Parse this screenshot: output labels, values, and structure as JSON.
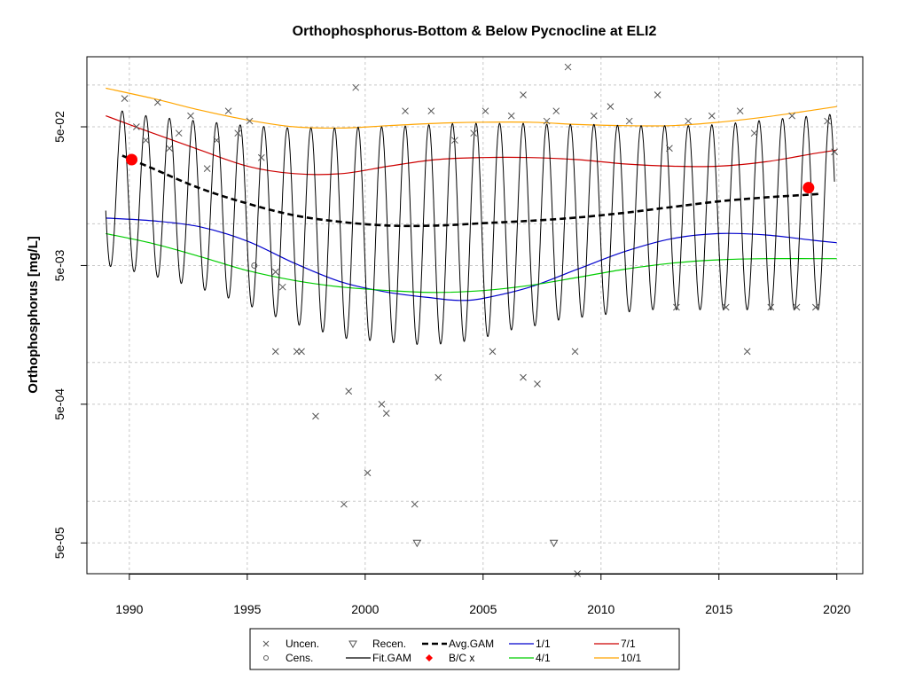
{
  "chart_data": {
    "type": "line",
    "title": "Orthophosphorus-Bottom & Below Pycnocline at ELI2",
    "xlabel": "",
    "ylabel": "Orthophosphorus [mg/L]",
    "y_scale": "log",
    "xlim": [
      1988.2,
      2021.1
    ],
    "ylim": [
      3e-05,
      0.16
    ],
    "x_ticks": [
      1990,
      1995,
      2000,
      2005,
      2010,
      2015,
      2020
    ],
    "y_ticks": [
      5e-05,
      0.0005,
      0.005,
      0.05
    ],
    "y_tick_labels": [
      "5e-05",
      "5e-04",
      "5e-03",
      "5e-02"
    ],
    "grid": true,
    "legend_position": "bottom",
    "colors": {
      "fit_gam": "#000000",
      "avg_gam": "#000000",
      "bc": "#ff0000",
      "s1_1": "#0000cd",
      "s4_1": "#00cd00",
      "s7_1": "#cd0000",
      "s10_1": "#ffa500",
      "points": "#555555"
    },
    "legend": [
      {
        "label": "Uncen.",
        "symbol": "cross",
        "color": "#555555"
      },
      {
        "label": "Cens.",
        "symbol": "circle",
        "color": "#555555"
      },
      {
        "label": "Recen.",
        "symbol": "triangle-down",
        "color": "#555555"
      },
      {
        "label": "Fit.GAM",
        "symbol": "line",
        "color": "#000000"
      },
      {
        "label": "Avg.GAM",
        "symbol": "dashed-line",
        "color": "#000000"
      },
      {
        "label": "B/C x",
        "symbol": "dot",
        "color": "#ff0000"
      },
      {
        "label": "1/1",
        "symbol": "line",
        "color": "#0000cd"
      },
      {
        "label": "4/1",
        "symbol": "line",
        "color": "#00cd00"
      },
      {
        "label": "7/1",
        "symbol": "line",
        "color": "#cd0000"
      },
      {
        "label": "10/1",
        "symbol": "line",
        "color": "#ffa500"
      }
    ],
    "series": [
      {
        "name": "10/1",
        "x": [
          1989,
          1991,
          1993,
          1995,
          1997,
          1999,
          2001,
          2003,
          2005,
          2007,
          2009,
          2011,
          2013,
          2015,
          2017,
          2019,
          2020
        ],
        "values": [
          0.095,
          0.08,
          0.066,
          0.056,
          0.05,
          0.049,
          0.051,
          0.053,
          0.054,
          0.054,
          0.052,
          0.051,
          0.051,
          0.054,
          0.059,
          0.066,
          0.07
        ]
      },
      {
        "name": "7/1",
        "x": [
          1989,
          1991,
          1993,
          1995,
          1997,
          1999,
          2001,
          2003,
          2005,
          2007,
          2009,
          2011,
          2013,
          2015,
          2017,
          2019,
          2020
        ],
        "values": [
          0.06,
          0.045,
          0.034,
          0.026,
          0.023,
          0.023,
          0.026,
          0.029,
          0.03,
          0.03,
          0.029,
          0.027,
          0.026,
          0.026,
          0.028,
          0.032,
          0.034
        ]
      },
      {
        "name": "Avg.GAM",
        "x": [
          1989.7,
          1991,
          1993,
          1995,
          1997,
          1999,
          2001,
          2003,
          2005,
          2007,
          2009,
          2011,
          2013,
          2015,
          2017,
          2019,
          2019.2
        ],
        "values": [
          0.031,
          0.025,
          0.018,
          0.014,
          0.0115,
          0.0103,
          0.0097,
          0.0097,
          0.0101,
          0.0105,
          0.0111,
          0.012,
          0.0132,
          0.0145,
          0.0155,
          0.0163,
          0.0165
        ]
      },
      {
        "name": "1/1",
        "x": [
          1989,
          1991,
          1993,
          1995,
          1997,
          1999,
          2001,
          2003,
          2004,
          2005,
          2007,
          2009,
          2011,
          2013,
          2015,
          2017,
          2019,
          2020
        ],
        "values": [
          0.011,
          0.0105,
          0.0095,
          0.0075,
          0.0052,
          0.0038,
          0.0032,
          0.0029,
          0.0028,
          0.0029,
          0.0035,
          0.0047,
          0.0063,
          0.0078,
          0.0085,
          0.0083,
          0.0076,
          0.0073
        ]
      },
      {
        "name": "4/1",
        "x": [
          1989,
          1991,
          1993,
          1995,
          1997,
          1999,
          2001,
          2003,
          2005,
          2007,
          2009,
          2011,
          2013,
          2015,
          2017,
          2019,
          2020
        ],
        "values": [
          0.0085,
          0.0072,
          0.0058,
          0.0046,
          0.0039,
          0.0035,
          0.0033,
          0.0032,
          0.0033,
          0.0036,
          0.0041,
          0.0047,
          0.0052,
          0.0055,
          0.0056,
          0.0056,
          0.0056
        ]
      },
      {
        "name": "Fit.GAM",
        "seasonal": true,
        "year_start": 1989,
        "year_end": 2019.9,
        "peak_values": [
          0.07,
          0.063,
          0.059,
          0.057,
          0.055,
          0.053,
          0.051,
          0.05,
          0.049,
          0.049,
          0.049,
          0.05,
          0.05,
          0.051,
          0.052,
          0.053,
          0.053,
          0.053,
          0.053,
          0.052,
          0.052,
          0.052,
          0.051,
          0.051,
          0.051,
          0.051,
          0.052,
          0.054,
          0.056,
          0.058,
          0.06,
          0.062
        ],
        "trough_values": [
          0.005,
          0.0046,
          0.0042,
          0.0038,
          0.0034,
          0.003,
          0.0026,
          0.0022,
          0.0019,
          0.0017,
          0.0015,
          0.00145,
          0.0014,
          0.00135,
          0.00135,
          0.0014,
          0.0015,
          0.0017,
          0.0018,
          0.002,
          0.0021,
          0.0022,
          0.0023,
          0.0024,
          0.0024,
          0.0024,
          0.0024,
          0.0024,
          0.0024,
          0.0024,
          0.0024,
          0.0024
        ]
      }
    ],
    "bc_points": [
      {
        "x": 1990.1,
        "y": 0.029
      },
      {
        "x": 2018.8,
        "y": 0.0182
      }
    ],
    "uncensored_points": [
      [
        1989.8,
        0.08
      ],
      [
        1990.3,
        0.05
      ],
      [
        1990.7,
        0.04
      ],
      [
        1991.2,
        0.075
      ],
      [
        1991.7,
        0.035
      ],
      [
        1992.1,
        0.045
      ],
      [
        1992.6,
        0.06
      ],
      [
        1993.3,
        0.025
      ],
      [
        1993.7,
        0.04
      ],
      [
        1994.2,
        0.065
      ],
      [
        1994.6,
        0.045
      ],
      [
        1995.1,
        0.055
      ],
      [
        1995.6,
        0.03
      ],
      [
        1996.2,
        0.0045
      ],
      [
        1996.5,
        0.0035
      ],
      [
        1996.2,
        0.0012
      ],
      [
        1997.1,
        0.0012
      ],
      [
        1997.3,
        0.0012
      ],
      [
        1997.9,
        0.00041
      ],
      [
        1999.3,
        0.00062
      ],
      [
        1999.1,
        9.5e-05
      ],
      [
        1999.6,
        0.096
      ],
      [
        2000.1,
        0.00016
      ],
      [
        2000.9,
        0.00043
      ],
      [
        2000.7,
        0.0005
      ],
      [
        2001.7,
        0.065
      ],
      [
        2002.1,
        9.5e-05
      ],
      [
        2002.8,
        0.065
      ],
      [
        2003.1,
        0.00078
      ],
      [
        2003.8,
        0.04
      ],
      [
        2004.6,
        0.045
      ],
      [
        2005.1,
        0.065
      ],
      [
        2005.4,
        0.0012
      ],
      [
        2006.2,
        0.06
      ],
      [
        2006.7,
        0.00078
      ],
      [
        2006.7,
        0.085
      ],
      [
        2007.3,
        0.0007
      ],
      [
        2007.7,
        0.055
      ],
      [
        2008.1,
        0.065
      ],
      [
        2008.6,
        0.135
      ],
      [
        2008.9,
        0.0012
      ],
      [
        2009.0,
        3e-05
      ],
      [
        2009.7,
        0.06
      ],
      [
        2010.4,
        0.07
      ],
      [
        2011.2,
        0.055
      ],
      [
        2012.4,
        0.085
      ],
      [
        2012.9,
        0.035
      ],
      [
        2013.2,
        0.0025
      ],
      [
        2013.7,
        0.055
      ],
      [
        2014.7,
        0.06
      ],
      [
        2015.3,
        0.0025
      ],
      [
        2015.9,
        0.065
      ],
      [
        2016.2,
        0.0012
      ],
      [
        2016.5,
        0.045
      ],
      [
        2017.2,
        0.0025
      ],
      [
        2018.1,
        0.06
      ],
      [
        2018.3,
        0.0025
      ],
      [
        2019.1,
        0.0025
      ],
      [
        2019.6,
        0.055
      ],
      [
        2019.9,
        0.033
      ]
    ],
    "censored_points": [
      [
        1995.3,
        0.005
      ]
    ],
    "recensored_points": [
      [
        2002.2,
        5e-05
      ],
      [
        2008.0,
        5e-05
      ]
    ]
  }
}
